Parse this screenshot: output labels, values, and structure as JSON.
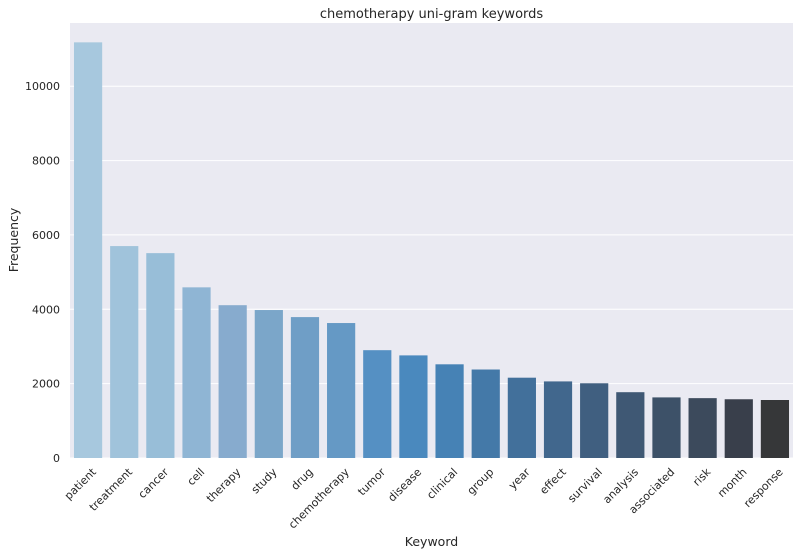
{
  "chart_data": {
    "type": "bar",
    "title": "chemotherapy uni-gram keywords",
    "xlabel": "Keyword",
    "ylabel": "Frequency",
    "categories": [
      "patient",
      "treatment",
      "cancer",
      "cell",
      "therapy",
      "study",
      "drug",
      "chemotherapy",
      "tumor",
      "disease",
      "clinical",
      "group",
      "year",
      "effect",
      "survival",
      "analysis",
      "associated",
      "risk",
      "month",
      "response"
    ],
    "values": [
      11180,
      5700,
      5510,
      4590,
      4110,
      3980,
      3790,
      3630,
      2900,
      2760,
      2520,
      2380,
      2160,
      2060,
      2010,
      1770,
      1630,
      1610,
      1580,
      1560
    ],
    "ylim": [
      0,
      11700
    ],
    "yticks": [
      0,
      2000,
      4000,
      6000,
      8000,
      10000
    ],
    "ytick_labels": [
      "0",
      "2000",
      "4000",
      "6000",
      "8000",
      "10000"
    ],
    "grid": true,
    "colors": [
      "#a7c8de",
      "#a0c3db",
      "#98bed8",
      "#8fb5d4",
      "#87abce",
      "#7ba6c9",
      "#6f9ec6",
      "#6599c5",
      "#5590c3",
      "#4a89be",
      "#4682b5",
      "#4479a8",
      "#42709b",
      "#41678d",
      "#405f80",
      "#3f5874",
      "#3d5168",
      "#3c4a5c",
      "#393f4b",
      "#363739"
    ]
  }
}
